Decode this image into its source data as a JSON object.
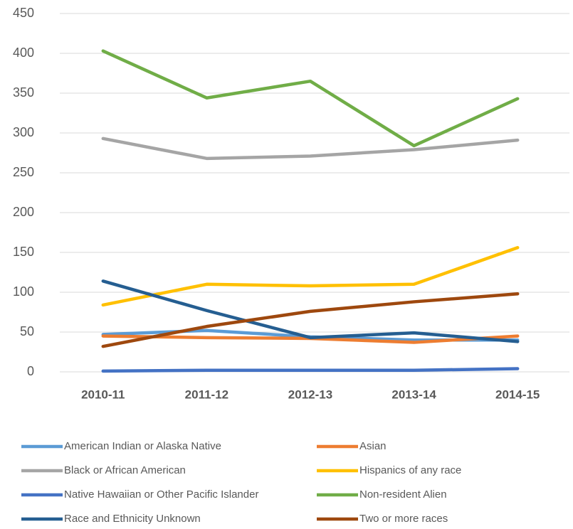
{
  "chart_data": {
    "type": "line",
    "categories": [
      "2010-11",
      "2011-12",
      "2012-13",
      "2013-14",
      "2014-15"
    ],
    "series": [
      {
        "name": "American Indian or Alaska Native",
        "color": "#5b9bd5",
        "values": [
          47,
          52,
          44,
          40,
          40
        ]
      },
      {
        "name": "Asian",
        "color": "#ed7d31",
        "values": [
          45,
          43,
          42,
          37,
          45
        ]
      },
      {
        "name": "Black or African American",
        "color": "#a5a5a5",
        "values": [
          293,
          268,
          271,
          279,
          291
        ]
      },
      {
        "name": "Hispanics of any race",
        "color": "#ffc000",
        "values": [
          84,
          110,
          108,
          110,
          156
        ]
      },
      {
        "name": "Native Hawaiian or Other Pacific Islander",
        "color": "#4472c4",
        "values": [
          1,
          2,
          2,
          2,
          4
        ]
      },
      {
        "name": "Non-resident Alien",
        "color": "#70ad47",
        "values": [
          403,
          344,
          365,
          284,
          343
        ]
      },
      {
        "name": "Race and Ethnicity Unknown",
        "color": "#255e91",
        "values": [
          114,
          77,
          43,
          49,
          38
        ]
      },
      {
        "name": "Two or more races",
        "color": "#9e480e",
        "values": [
          32,
          57,
          76,
          88,
          98
        ]
      }
    ],
    "ylim": [
      0,
      450
    ],
    "yticks": [
      0,
      50,
      100,
      150,
      200,
      250,
      300,
      350,
      400,
      450
    ],
    "grid": true,
    "legend": "bottom"
  }
}
